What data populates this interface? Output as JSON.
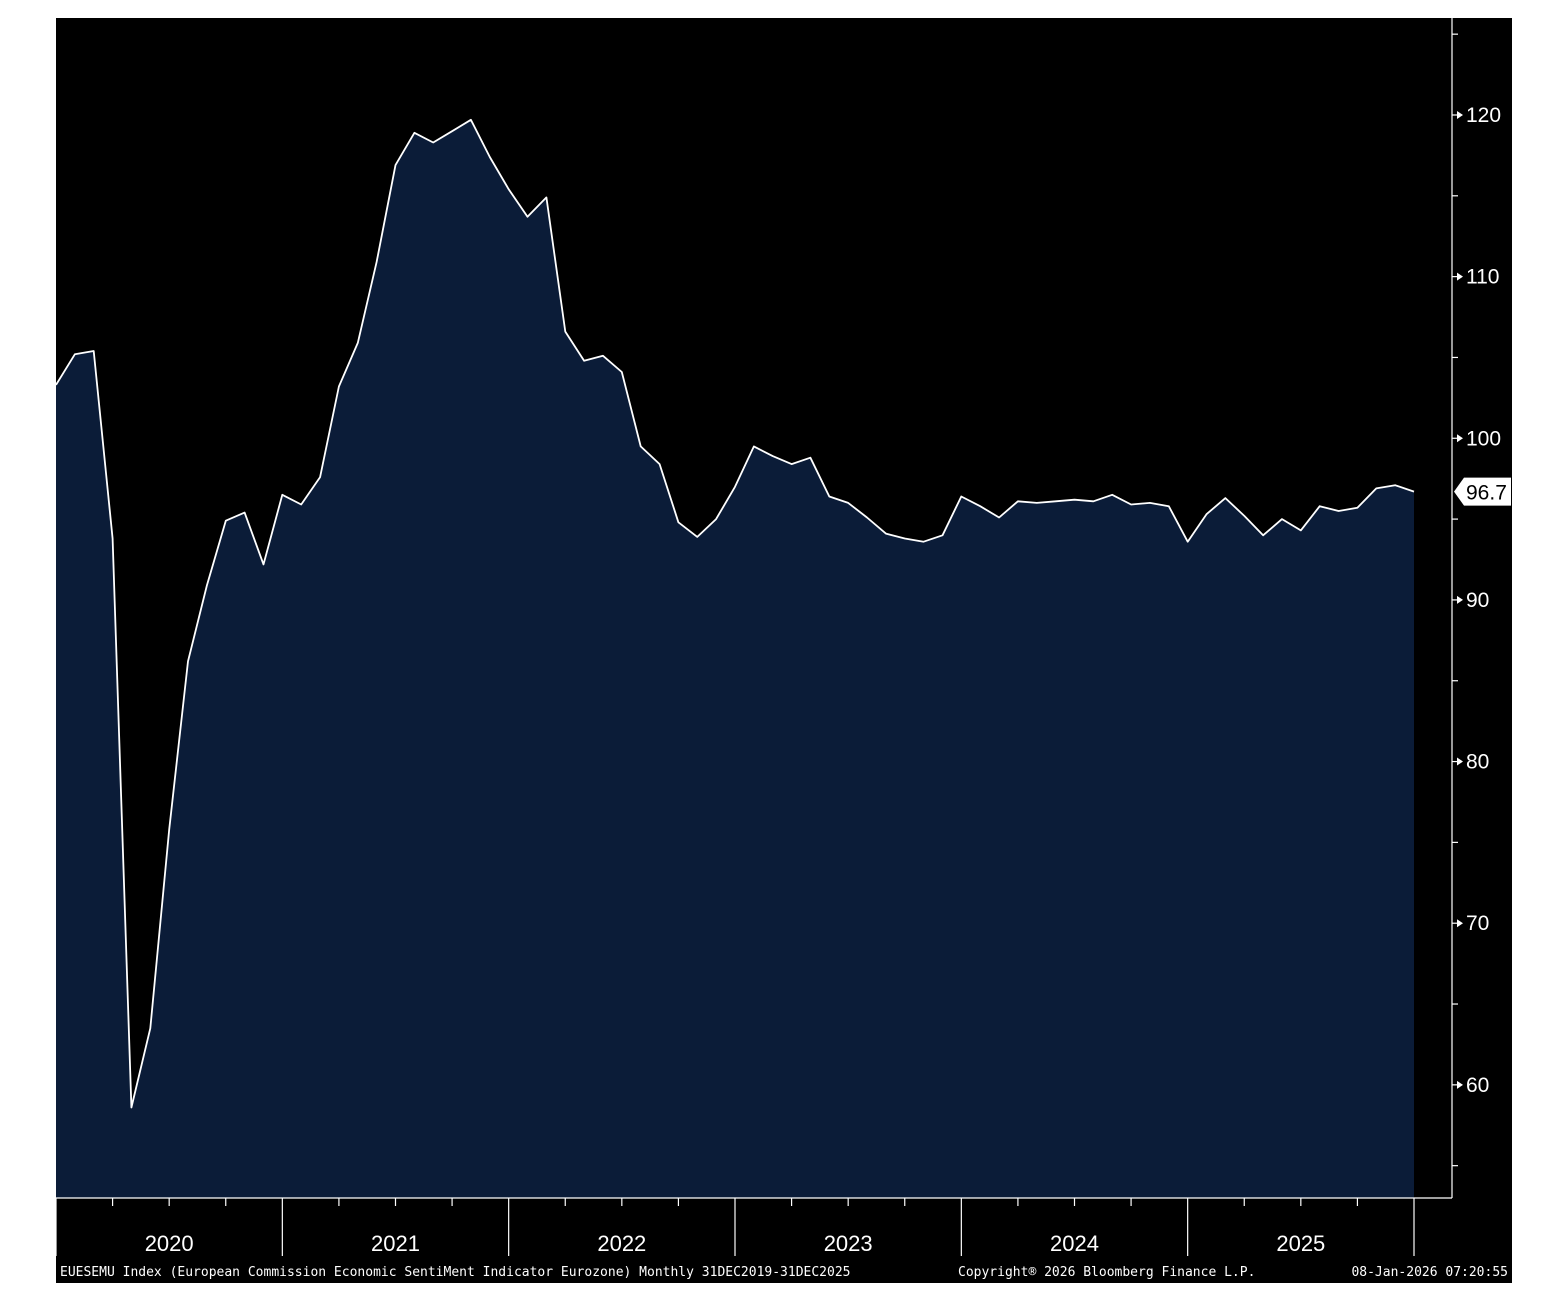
{
  "chart_data": {
    "type": "area",
    "frequency": "monthly",
    "x": [
      "2019-12",
      "2020-01",
      "2020-02",
      "2020-03",
      "2020-04",
      "2020-05",
      "2020-06",
      "2020-07",
      "2020-08",
      "2020-09",
      "2020-10",
      "2020-11",
      "2020-12",
      "2021-01",
      "2021-02",
      "2021-03",
      "2021-04",
      "2021-05",
      "2021-06",
      "2021-07",
      "2021-08",
      "2021-09",
      "2021-10",
      "2021-11",
      "2021-12",
      "2022-01",
      "2022-02",
      "2022-03",
      "2022-04",
      "2022-05",
      "2022-06",
      "2022-07",
      "2022-08",
      "2022-09",
      "2022-10",
      "2022-11",
      "2022-12",
      "2023-01",
      "2023-02",
      "2023-03",
      "2023-04",
      "2023-05",
      "2023-06",
      "2023-07",
      "2023-08",
      "2023-09",
      "2023-10",
      "2023-11",
      "2023-12",
      "2024-01",
      "2024-02",
      "2024-03",
      "2024-04",
      "2024-05",
      "2024-06",
      "2024-07",
      "2024-08",
      "2024-09",
      "2024-10",
      "2024-11",
      "2024-12",
      "2025-01",
      "2025-02",
      "2025-03",
      "2025-04",
      "2025-05",
      "2025-06",
      "2025-07",
      "2025-08",
      "2025-09",
      "2025-10",
      "2025-11",
      "2025-12"
    ],
    "values": [
      103.3,
      105.2,
      105.4,
      93.8,
      58.6,
      63.5,
      75.8,
      86.2,
      90.9,
      94.9,
      95.4,
      92.2,
      96.5,
      95.9,
      97.6,
      103.2,
      105.9,
      110.9,
      116.9,
      118.9,
      118.3,
      119.0,
      119.7,
      117.4,
      115.4,
      113.7,
      114.9,
      106.6,
      104.8,
      105.1,
      104.1,
      99.5,
      98.4,
      94.8,
      93.9,
      95.0,
      97.0,
      99.5,
      98.9,
      98.4,
      98.8,
      96.4,
      96.0,
      95.1,
      94.1,
      93.8,
      93.6,
      94.0,
      96.4,
      95.8,
      95.1,
      96.1,
      96.0,
      96.1,
      96.2,
      96.1,
      96.5,
      95.9,
      96.0,
      95.8,
      93.6,
      95.3,
      96.3,
      95.2,
      94.0,
      95.0,
      94.3,
      95.8,
      95.5,
      95.7,
      96.9,
      97.1,
      96.7
    ],
    "x_tick_labels": [
      "2020",
      "2021",
      "2022",
      "2023",
      "2024",
      "2025"
    ],
    "y_tick_labels": [
      60,
      70,
      80,
      90,
      100,
      110,
      120
    ],
    "ylim": [
      53,
      126
    ],
    "y_axis_position": "right",
    "grid": false,
    "last_value_label": "96.7",
    "colors": {
      "background": "#000000",
      "area_fill": "#0b1c38",
      "line": "#ffffff",
      "axis": "#ffffff",
      "page": "#ffffff"
    }
  },
  "footer": {
    "description": "EUESEMU Index (European Commission Economic SentiMent Indicator Eurozone) Monthly 31DEC2019-31DEC2025",
    "copyright": "Copyright® 2026 Bloomberg Finance L.P.",
    "timestamp": "08-Jan-2026 07:20:55"
  }
}
